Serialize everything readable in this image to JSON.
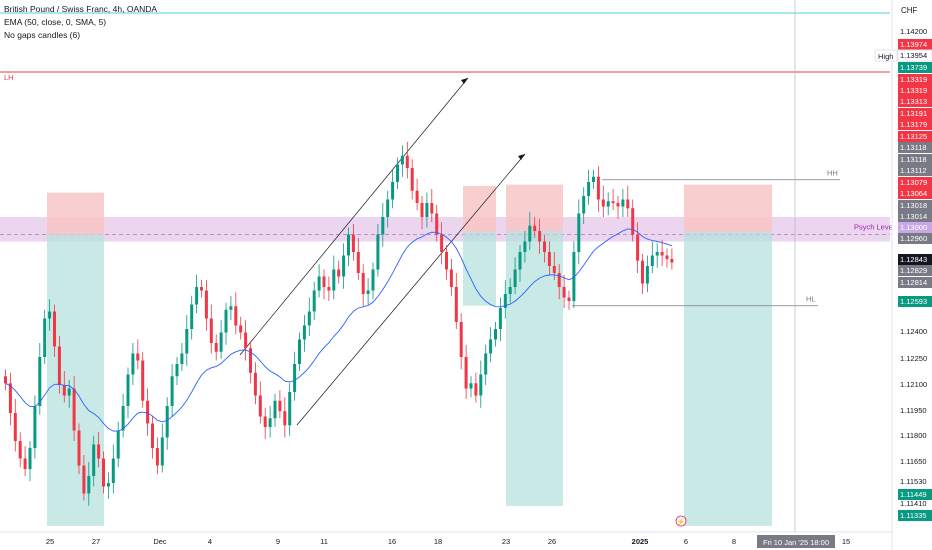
{
  "header": {
    "symbol_line": "British Pound / Swiss Franc, 4h, OANDA",
    "ema_line": "EMA (50, close, 0, SMA, 5)",
    "nogaps_line": "No gaps candles (6)"
  },
  "axis": {
    "currency": "CHF",
    "y_ticks": [
      "1.14200",
      "1.12400",
      "1.12250",
      "1.12100",
      "1.11950",
      "1.11800",
      "1.11650",
      "1.11530",
      "1.11410"
    ],
    "x_ticks": [
      "25",
      "27",
      "Dec",
      "4",
      "9",
      "11",
      "16",
      "18",
      "23",
      "26",
      "2025",
      "6",
      "8",
      "13",
      "15"
    ],
    "crosshair_label": "Fri 10 Jan '25  18:00"
  },
  "price_labels": [
    {
      "text": "1.13974",
      "color": "#f23645"
    },
    {
      "text": "1.13954",
      "color": "#ffffff"
    },
    {
      "text": "1.13739",
      "color": "#089981"
    },
    {
      "text": "1.13319",
      "color": "#f23645"
    },
    {
      "text": "1.13319",
      "color": "#f23645"
    },
    {
      "text": "1.13313",
      "color": "#f23645"
    },
    {
      "text": "1.13191",
      "color": "#f23645"
    },
    {
      "text": "1.13179",
      "color": "#f23645"
    },
    {
      "text": "1.13125",
      "color": "#f23645"
    },
    {
      "text": "1.13118",
      "color": "#787b86"
    },
    {
      "text": "1.13118",
      "color": "#787b86"
    },
    {
      "text": "1.13112",
      "color": "#787b86"
    },
    {
      "text": "1.13079",
      "color": "#f23645"
    },
    {
      "text": "1.13064",
      "color": "#f23645"
    },
    {
      "text": "1.13018",
      "color": "#787b86"
    },
    {
      "text": "1.13014",
      "color": "#787b86"
    },
    {
      "text": "1.13000",
      "color": "#c9a8e6"
    },
    {
      "text": "1.12960",
      "color": "#787b86"
    },
    {
      "text": "1.12843",
      "color": "#131722"
    },
    {
      "text": "1.12829",
      "color": "#787b86"
    },
    {
      "text": "1.12814",
      "color": "#787b86"
    },
    {
      "text": "1.12593",
      "color": "#089981"
    },
    {
      "text": "1.11449",
      "color": "#089981"
    },
    {
      "text": "1.11335",
      "color": "#089981"
    }
  ],
  "high_label": "High",
  "annotations": {
    "lh": "LH",
    "hh": "HH",
    "hl": "HL",
    "psych": "Psych Level"
  },
  "colors": {
    "bull": "#089981",
    "bear": "#f23645",
    "ema": "#2962ff",
    "psych_zone": "#e1bee7",
    "stop_zone": "#f8c6c6",
    "target_zone": "#b2dfdb"
  },
  "chart_data": {
    "type": "candlestick",
    "symbol": "GBPCHF",
    "timeframe": "4h",
    "ylim": [
      1.113,
      1.1434
    ],
    "levels": {
      "lh": 1.13739,
      "hh": 1.13313,
      "hl": 1.12593,
      "psych_level": 1.13,
      "psych_zone": [
        1.1296,
        1.131
      ],
      "top_line": 1.143
    },
    "trade_boxes": [
      {
        "entry": 1.13,
        "stop": 1.13079,
        "target": 1.11335
      },
      {
        "entry": 1.13014,
        "stop": 1.13118,
        "target": 1.12593
      },
      {
        "entry": 1.13018,
        "stop": 1.13125,
        "target": 1.11449
      },
      {
        "entry": 1.13014,
        "stop": 1.13125,
        "target": 1.11335
      }
    ],
    "series": [
      {
        "name": "close",
        "values": [
          1.1215,
          1.1198,
          1.1182,
          1.1172,
          1.1166,
          1.1178,
          1.1202,
          1.123,
          1.1252,
          1.1256,
          1.1236,
          1.1214,
          1.1208,
          1.1212,
          1.1188,
          1.1168,
          1.1152,
          1.1162,
          1.118,
          1.1172,
          1.1156,
          1.1158,
          1.1172,
          1.1188,
          1.1202,
          1.122,
          1.1232,
          1.1228,
          1.1205,
          1.1192,
          1.1178,
          1.1168,
          1.1184,
          1.1202,
          1.1219,
          1.1226,
          1.1232,
          1.1246,
          1.126,
          1.127,
          1.1268,
          1.1252,
          1.1238,
          1.1233,
          1.1244,
          1.1257,
          1.1259,
          1.1248,
          1.1244,
          1.1235,
          1.1221,
          1.1208,
          1.1196,
          1.119,
          1.1195,
          1.1205,
          1.1199,
          1.1191,
          1.121,
          1.1226,
          1.124,
          1.1248,
          1.1256,
          1.1268,
          1.1276,
          1.127,
          1.1268,
          1.128,
          1.1276,
          1.1288,
          1.13,
          1.129,
          1.1278,
          1.1266,
          1.1268,
          1.128,
          1.13,
          1.131,
          1.132,
          1.133,
          1.134,
          1.1345,
          1.1338,
          1.1325,
          1.1318,
          1.131,
          1.1318,
          1.1312,
          1.13,
          1.129,
          1.128,
          1.127,
          1.125,
          1.123,
          1.1212,
          1.1215,
          1.1208,
          1.122,
          1.1232,
          1.124,
          1.1246,
          1.1258,
          1.1266,
          1.127,
          1.128,
          1.129,
          1.1296,
          1.1305,
          1.1302,
          1.1296,
          1.129,
          1.1282,
          1.1278,
          1.127,
          1.1264,
          1.1262,
          1.129,
          1.1312,
          1.1322,
          1.133,
          1.1333,
          1.132,
          1.1316,
          1.1319,
          1.1318,
          1.1316,
          1.132,
          1.1315,
          1.13,
          1.1285,
          1.1272,
          1.1282,
          1.1288,
          1.129,
          1.1288,
          1.1286,
          1.1284
        ]
      }
    ]
  }
}
